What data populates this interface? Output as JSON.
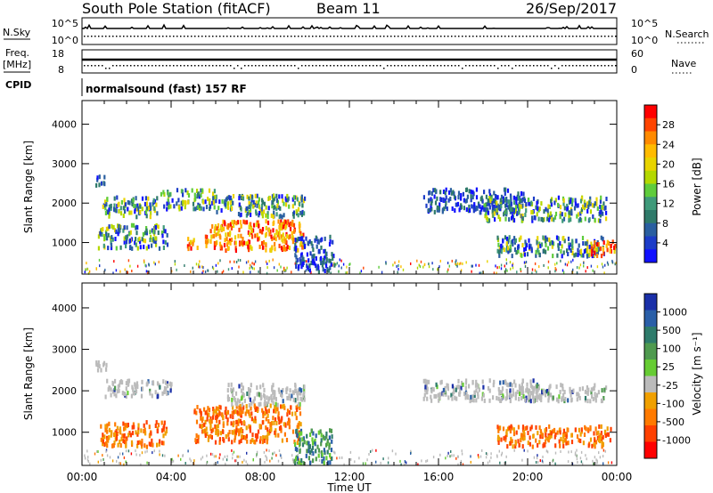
{
  "header": {
    "title": "South Pole Station (fitACF)",
    "beam": "Beam 11",
    "date": "26/Sep/2017"
  },
  "params": {
    "nsky_label": "N.Sky",
    "nsky_ticks": [
      "10^5",
      "10^0"
    ],
    "nsearch_label": "N.Search",
    "nsearch_ticks": [
      "10^5",
      "10^0"
    ],
    "freq_label_1": "Freq.",
    "freq_label_2": "[MHz]",
    "freq_ticks": [
      "18",
      "8"
    ],
    "nave_label": "Nave",
    "nave_ticks": [
      "60",
      "0"
    ],
    "cpid_label": "CPID",
    "cpid_value": "normalsound (fast) 157 RF"
  },
  "chart_data": [
    {
      "type": "heatmap",
      "name": "power-panel",
      "ylabel": "Slant Range [km]",
      "xlabel": "",
      "x_ticks": [
        "00:00",
        "04:00",
        "08:00",
        "12:00",
        "16:00",
        "20:00",
        "00:00"
      ],
      "y_ticks": [
        "4000",
        "3000",
        "2000",
        "1000"
      ],
      "ylim": [
        200,
        4600
      ],
      "xlim_hours": [
        0,
        24
      ],
      "colorbar": {
        "label": "Power [dB]",
        "ticks": [
          "28",
          "24",
          "20",
          "16",
          "12",
          "8",
          "4"
        ],
        "colors": [
          "#ff0000",
          "#ff4400",
          "#ff8a00",
          "#ffbb00",
          "#e8d400",
          "#b4d800",
          "#5fcc3c",
          "#3f9a7a",
          "#2f7a6a",
          "#2a5fa0",
          "#1c3cc8",
          "#1010ff"
        ]
      },
      "regions": [
        {
          "x": [
            0.6,
            1.1
          ],
          "y": [
            2500,
            2750
          ],
          "level": "weak"
        },
        {
          "x": [
            0.9,
            3.4
          ],
          "y": [
            1700,
            2200
          ],
          "level": "medium"
        },
        {
          "x": [
            0.7,
            3.8
          ],
          "y": [
            900,
            1500
          ],
          "level": "medium"
        },
        {
          "x": [
            3.5,
            6.0
          ],
          "y": [
            1900,
            2400
          ],
          "level": "medium"
        },
        {
          "x": [
            4.7,
            5.2
          ],
          "y": [
            850,
            1150
          ],
          "level": "strong"
        },
        {
          "x": [
            5.5,
            6.3
          ],
          "y": [
            900,
            1500
          ],
          "level": "strong"
        },
        {
          "x": [
            6.2,
            9.9
          ],
          "y": [
            850,
            1600
          ],
          "level": "strong"
        },
        {
          "x": [
            6.0,
            10.0
          ],
          "y": [
            1700,
            2250
          ],
          "level": "medium"
        },
        {
          "x": [
            9.5,
            11.3
          ],
          "y": [
            300,
            1200
          ],
          "level": "weak"
        },
        {
          "x": [
            15.3,
            19.8
          ],
          "y": [
            1800,
            2400
          ],
          "level": "weak"
        },
        {
          "x": [
            18.0,
            23.5
          ],
          "y": [
            1600,
            2200
          ],
          "level": "medium"
        },
        {
          "x": [
            18.6,
            23.4
          ],
          "y": [
            700,
            1200
          ],
          "level": "medium"
        },
        {
          "x": [
            22.8,
            23.9
          ],
          "y": [
            700,
            1100
          ],
          "level": "strong"
        }
      ]
    },
    {
      "type": "heatmap",
      "name": "velocity-panel",
      "ylabel": "Slant Range [km]",
      "xlabel": "Time UT",
      "x_ticks": [
        "00:00",
        "04:00",
        "08:00",
        "12:00",
        "16:00",
        "20:00",
        "00:00"
      ],
      "y_ticks": [
        "4000",
        "3000",
        "2000",
        "1000"
      ],
      "ylim": [
        200,
        4600
      ],
      "xlim_hours": [
        0,
        24
      ],
      "colorbar": {
        "label": "Velocity [m s⁻¹]",
        "ticks": [
          "1000",
          "500",
          "100",
          "25",
          "-25",
          "-100",
          "-500",
          "-1000"
        ],
        "colors": [
          "#1a2fa8",
          "#2a5fa8",
          "#2e7b6b",
          "#4f9a4f",
          "#66cc33",
          "#bbbbbb",
          "#f0a000",
          "#ff7a00",
          "#ff4000",
          "#ff0000"
        ]
      },
      "regions": [
        {
          "x": [
            0.6,
            1.2
          ],
          "y": [
            2500,
            2750
          ],
          "level": "ground"
        },
        {
          "x": [
            1.0,
            4.0
          ],
          "y": [
            1900,
            2300
          ],
          "level": "ground"
        },
        {
          "x": [
            0.8,
            3.8
          ],
          "y": [
            700,
            1300
          ],
          "level": "away"
        },
        {
          "x": [
            5.0,
            9.8
          ],
          "y": [
            800,
            1700
          ],
          "level": "away"
        },
        {
          "x": [
            6.5,
            10.0
          ],
          "y": [
            1700,
            2200
          ],
          "level": "ground"
        },
        {
          "x": [
            9.5,
            11.2
          ],
          "y": [
            300,
            1100
          ],
          "level": "toward"
        },
        {
          "x": [
            15.3,
            20.5
          ],
          "y": [
            1800,
            2300
          ],
          "level": "ground"
        },
        {
          "x": [
            19.5,
            23.5
          ],
          "y": [
            1800,
            2200
          ],
          "level": "ground"
        },
        {
          "x": [
            18.6,
            23.7
          ],
          "y": [
            700,
            1200
          ],
          "level": "away"
        }
      ]
    }
  ]
}
